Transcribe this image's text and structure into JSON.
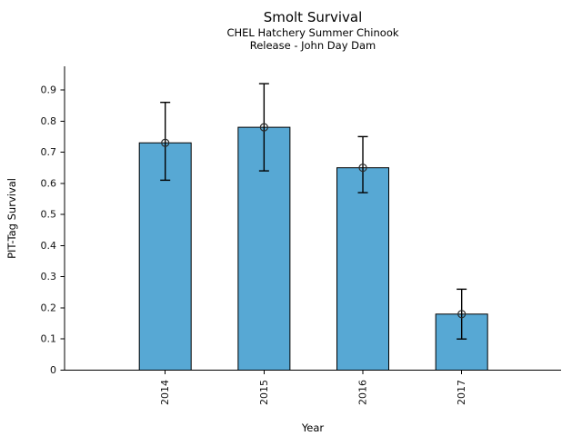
{
  "chart_data": {
    "type": "bar",
    "title": "Smolt Survival",
    "subtitle": [
      "CHEL Hatchery Summer Chinook",
      "Release - John Day Dam"
    ],
    "xlabel": "Year",
    "ylabel": "PIT-Tag Survival",
    "categories": [
      "2014",
      "2015",
      "2016",
      "2017"
    ],
    "values": [
      0.73,
      0.78,
      0.65,
      0.18
    ],
    "error_low": [
      0.61,
      0.64,
      0.57,
      0.1
    ],
    "error_high": [
      0.86,
      0.92,
      0.75,
      0.26
    ],
    "ylim": [
      0,
      0.975
    ],
    "yticks": [
      0,
      0.1,
      0.2,
      0.3,
      0.4,
      0.5,
      0.6,
      0.7,
      0.8,
      0.9
    ],
    "ytick_labels": [
      "0",
      "0.1",
      "0.2",
      "0.3",
      "0.4",
      "0.5",
      "0.6",
      "0.7",
      "0.8",
      "0.9"
    ],
    "x_tick_rotation": 90,
    "grid": false,
    "legend": null,
    "marker": "open-circle",
    "bar_color": "#57a8d4",
    "bar_edge_color": "#000000",
    "error_color": "#000000",
    "marker_edge_color": "#2b2b2b"
  }
}
